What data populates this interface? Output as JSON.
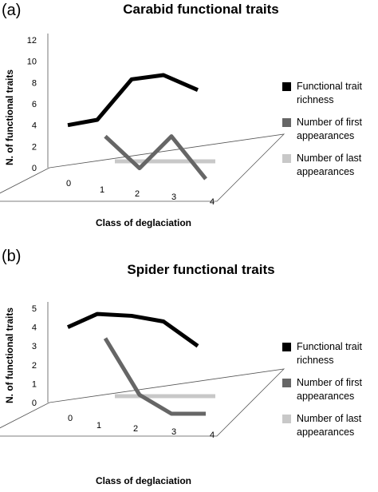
{
  "panels": [
    {
      "letter": "(a)",
      "title": "Carabid functional traits",
      "ylabel": "N. of functional traits",
      "xlabel": "Class of deglaciation",
      "yticks": [
        "0",
        "2",
        "4",
        "6",
        "8",
        "10",
        "12"
      ],
      "xticks": [
        "0",
        "1",
        "2",
        "3",
        "4"
      ]
    },
    {
      "letter": "(b)",
      "title": "Spider functional traits",
      "ylabel": "N. of functional traits",
      "xlabel": "Class of deglaciation",
      "yticks": [
        "0",
        "1",
        "2",
        "3",
        "4",
        "5"
      ],
      "xticks": [
        "0",
        "1",
        "2",
        "3",
        "4"
      ]
    }
  ],
  "legend": [
    {
      "label": "Functional trait richness",
      "color": "#000000"
    },
    {
      "label": "Number of first appearances",
      "color": "#666666"
    },
    {
      "label": "Number of last appearances",
      "color": "#c8c8c8"
    }
  ],
  "chart_data": [
    {
      "type": "line",
      "title": "Carabid functional traits",
      "xlabel": "Class of deglaciation",
      "ylabel": "N. of functional traits",
      "categories": [
        "0",
        "1",
        "2",
        "3",
        "4"
      ],
      "ylim": [
        0,
        12
      ],
      "grid": false,
      "legend_position": "right",
      "series": [
        {
          "name": "Functional trait richness",
          "values": [
            4,
            4.5,
            8.3,
            8.7,
            7.3
          ],
          "color": "#000000"
        },
        {
          "name": "Number of first appearances",
          "values": [
            null,
            4,
            1,
            4,
            0
          ],
          "color": "#666666"
        },
        {
          "name": "Number of last appearances",
          "values": [
            null,
            0,
            0,
            0,
            0
          ],
          "color": "#c8c8c8"
        }
      ]
    },
    {
      "type": "line",
      "title": "Spider functional traits",
      "xlabel": "Class of deglaciation",
      "ylabel": "N. of functional traits",
      "categories": [
        "0",
        "1",
        "2",
        "3",
        "4"
      ],
      "ylim": [
        0,
        5
      ],
      "grid": false,
      "legend_position": "right",
      "series": [
        {
          "name": "Functional trait richness",
          "values": [
            4,
            4.7,
            4.6,
            4.3,
            3
          ],
          "color": "#000000"
        },
        {
          "name": "Number of first appearances",
          "values": [
            null,
            4,
            1,
            0,
            0
          ],
          "color": "#666666"
        },
        {
          "name": "Number of last appearances",
          "values": [
            null,
            0,
            0,
            0,
            0
          ],
          "color": "#c8c8c8"
        }
      ]
    }
  ]
}
